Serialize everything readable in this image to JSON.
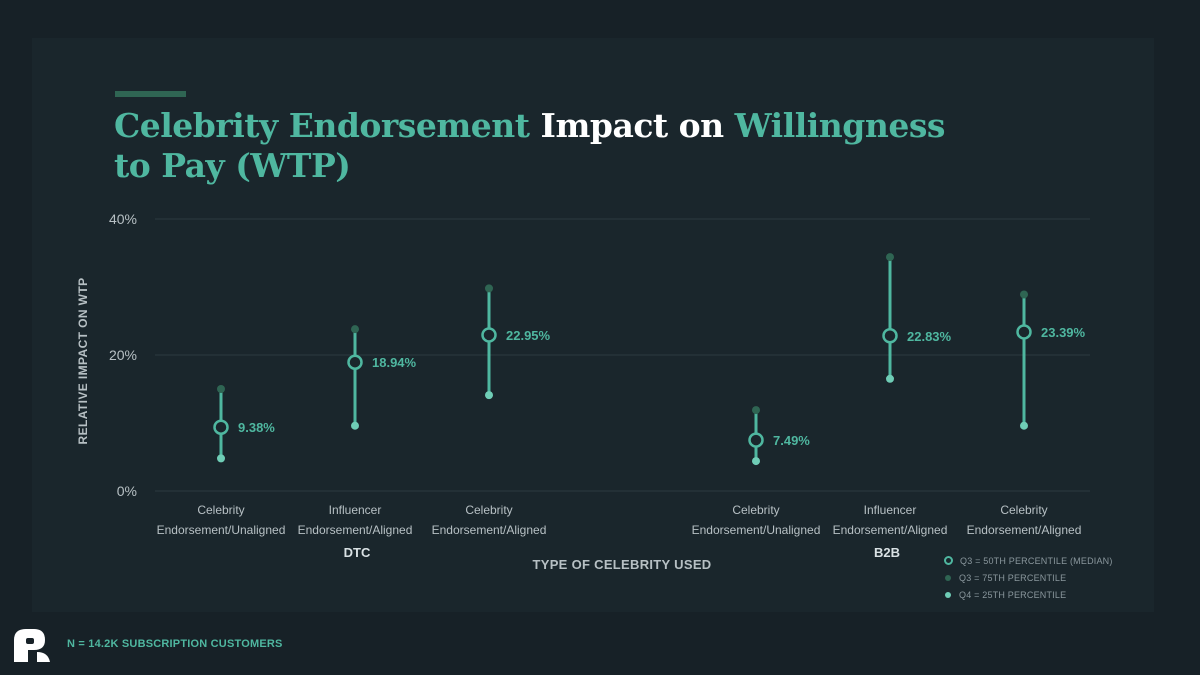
{
  "title": {
    "segments": [
      {
        "text": "Celebrity Endorsement ",
        "highlight": true
      },
      {
        "text": "Impact on ",
        "highlight": false
      },
      {
        "text": "Willingness to Pay (WTP)",
        "highlight": true
      }
    ]
  },
  "chart_data": {
    "type": "scatter",
    "title": "Celebrity Endorsement Impact on Willingness to Pay (WTP)",
    "ylabel": "RELATIVE IMPACT ON WTP",
    "xlabel": "TYPE OF CELEBRITY USED",
    "ylim": [
      0,
      40
    ],
    "yticks": [
      "0%",
      "20%",
      "40%"
    ],
    "grid": true,
    "legend_position": "bottom-right",
    "groups": [
      {
        "name": "DTC",
        "categories": [
          {
            "label_lines": [
              "Celebrity",
              "Endorsement/Unaligned"
            ],
            "median": 9.38,
            "q75": 15.0,
            "q25": 4.8,
            "median_label": "9.38%"
          },
          {
            "label_lines": [
              "Influencer",
              "Endorsement/Aligned"
            ],
            "median": 18.94,
            "q75": 23.8,
            "q25": 9.6,
            "median_label": "18.94%"
          },
          {
            "label_lines": [
              "Celebrity",
              "Endorsement/Aligned"
            ],
            "median": 22.95,
            "q75": 29.8,
            "q25": 14.1,
            "median_label": "22.95%"
          }
        ]
      },
      {
        "name": "B2B",
        "categories": [
          {
            "label_lines": [
              "Celebrity",
              "Endorsement/Unaligned"
            ],
            "median": 7.49,
            "q75": 11.9,
            "q25": 4.4,
            "median_label": "7.49%"
          },
          {
            "label_lines": [
              "Influencer",
              "Endorsement/Aligned"
            ],
            "median": 22.83,
            "q75": 34.4,
            "q25": 16.5,
            "median_label": "22.83%"
          },
          {
            "label_lines": [
              "Celebrity",
              "Endorsement/Aligned"
            ],
            "median": 23.39,
            "q75": 28.9,
            "q25": 9.6,
            "median_label": "23.39%"
          }
        ]
      }
    ],
    "legend": [
      {
        "key": "median",
        "label": "Q3 = 50TH PERCENTILE (MEDIAN)"
      },
      {
        "key": "q75",
        "label": "Q3 = 75TH PERCENTILE"
      },
      {
        "key": "q25",
        "label": "Q4 = 25TH PERCENTILE"
      }
    ]
  },
  "footnote": "N = 14.2K SUBSCRIPTION CUSTOMERS",
  "colors": {
    "background": "#172127",
    "panel": "#1a262c",
    "accent": "#4fb7a0",
    "q75_dot": "#2f6553",
    "q25_dot": "#6fcdb6",
    "axis_text": "#b7c0c4",
    "gridline": "#2c3a41"
  },
  "icons": {
    "logo": "brand-logo-icon"
  }
}
